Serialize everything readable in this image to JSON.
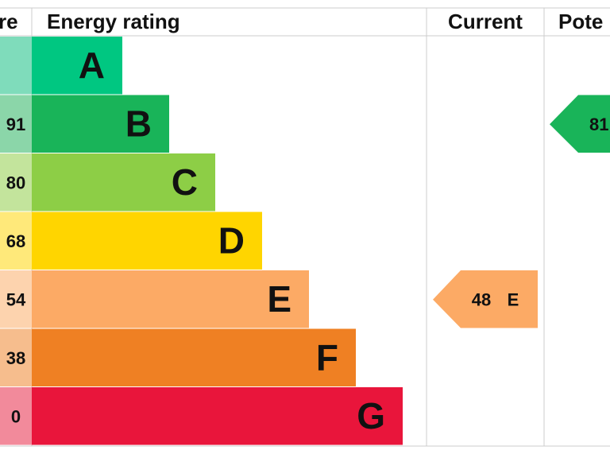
{
  "header": {
    "score": "re",
    "rating": "Energy rating",
    "current": "Current",
    "potential": "Pote"
  },
  "rows": [
    {
      "score": null,
      "letter": "A",
      "color": "#00c781",
      "light": "#7fdcbb"
    },
    {
      "score": "91",
      "letter": "B",
      "color": "#19b459",
      "light": "#8bd6a9"
    },
    {
      "score": "80",
      "letter": "C",
      "color": "#8dce46",
      "light": "#c3e49c"
    },
    {
      "score": "68",
      "letter": "D",
      "color": "#ffd500",
      "light": "#ffe97a"
    },
    {
      "score": "54",
      "letter": "E",
      "color": "#fcaa65",
      "light": "#fdd3ae"
    },
    {
      "score": "38",
      "letter": "F",
      "color": "#ef8023",
      "light": "#f6bd8d"
    },
    {
      "score": "0",
      "letter": "G",
      "color": "#e9153b",
      "light": "#f28a9b"
    }
  ],
  "current": {
    "value": "48",
    "letter": "E",
    "row": 4
  },
  "potential": {
    "value": "81",
    "row": 1
  }
}
